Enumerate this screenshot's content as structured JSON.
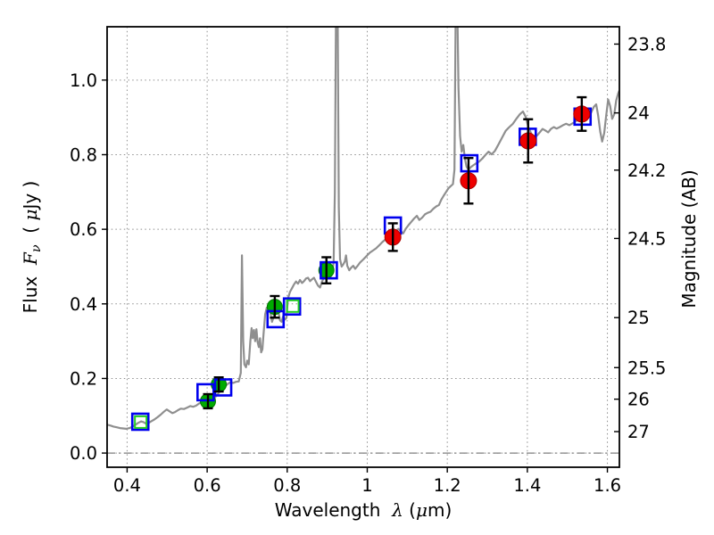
{
  "figure": {
    "background": "#ffffff",
    "xlabel_parts": [
      {
        "t": "Wavelength  "
      },
      {
        "t": "λ",
        "math": true
      },
      {
        "t": " ("
      },
      {
        "t": "μ",
        "math": true
      },
      {
        "t": "m)"
      }
    ],
    "ylabel_left_parts": [
      {
        "t": "Flux  "
      },
      {
        "t": "F",
        "math": true
      },
      {
        "t": "ν",
        "math": true,
        "sub": true
      },
      {
        "t": "  ( "
      },
      {
        "t": "μ",
        "math": true
      },
      {
        "t": "Jy )"
      }
    ],
    "ylabel_right_parts": [
      {
        "t": "Magnitude (AB)"
      }
    ]
  },
  "chart_data": {
    "type": "line",
    "title": "",
    "xlabel": "Wavelength lambda (micron)",
    "ylabel": "Flux F_nu (microJy)",
    "ylabel_right": "Magnitude (AB)",
    "xlim": [
      0.35,
      1.63
    ],
    "ylim": [
      -0.038,
      1.143
    ],
    "grid": {
      "on": true,
      "style": "dotted",
      "color": "#8f8f8f"
    },
    "zero_line": {
      "y": 0.0,
      "style": "dashdot",
      "color": "#808080"
    },
    "x_ticks": [
      0.4,
      0.6,
      0.8,
      1.0,
      1.2,
      1.4,
      1.6
    ],
    "x_tick_labels": [
      "0.4",
      "0.6",
      "0.8",
      "1",
      "1.2",
      "1.4",
      "1.6"
    ],
    "y_ticks": [
      0.0,
      0.2,
      0.4,
      0.6,
      0.8,
      1.0
    ],
    "y_tick_labels": [
      "0.0",
      "0.2",
      "0.4",
      "0.6",
      "0.8",
      "1.0"
    ],
    "right_axis_ticks": [
      {
        "label": "23.8",
        "flux": 1.0965
      },
      {
        "label": "24",
        "flux": 0.912
      },
      {
        "label": "24.2",
        "flux": 0.7586
      },
      {
        "label": "24.5",
        "flux": 0.5754
      },
      {
        "label": "25",
        "flux": 0.3631
      },
      {
        "label": "25.5",
        "flux": 0.2291
      },
      {
        "label": "26",
        "flux": 0.1445
      },
      {
        "label": "27",
        "flux": 0.0575
      }
    ],
    "series": [
      {
        "name": "model-spectrum",
        "type": "line",
        "color": "#8f8f8f",
        "linewidth": 2.2,
        "points": [
          [
            0.35,
            0.076
          ],
          [
            0.358,
            0.074
          ],
          [
            0.366,
            0.071
          ],
          [
            0.374,
            0.069
          ],
          [
            0.382,
            0.067
          ],
          [
            0.39,
            0.066
          ],
          [
            0.398,
            0.065
          ],
          [
            0.406,
            0.067
          ],
          [
            0.414,
            0.071
          ],
          [
            0.421,
            0.076
          ],
          [
            0.428,
            0.081
          ],
          [
            0.435,
            0.085
          ],
          [
            0.441,
            0.083
          ],
          [
            0.447,
            0.079
          ],
          [
            0.453,
            0.08
          ],
          [
            0.46,
            0.085
          ],
          [
            0.468,
            0.09
          ],
          [
            0.476,
            0.096
          ],
          [
            0.484,
            0.103
          ],
          [
            0.492,
            0.111
          ],
          [
            0.499,
            0.117
          ],
          [
            0.506,
            0.112
          ],
          [
            0.513,
            0.107
          ],
          [
            0.52,
            0.11
          ],
          [
            0.527,
            0.115
          ],
          [
            0.534,
            0.119
          ],
          [
            0.542,
            0.118
          ],
          [
            0.55,
            0.122
          ],
          [
            0.558,
            0.126
          ],
          [
            0.565,
            0.124
          ],
          [
            0.572,
            0.127
          ],
          [
            0.58,
            0.133
          ],
          [
            0.588,
            0.137
          ],
          [
            0.596,
            0.141
          ],
          [
            0.604,
            0.146
          ],
          [
            0.611,
            0.151
          ],
          [
            0.617,
            0.147
          ],
          [
            0.623,
            0.153
          ],
          [
            0.63,
            0.163
          ],
          [
            0.637,
            0.17
          ],
          [
            0.644,
            0.178
          ],
          [
            0.651,
            0.185
          ],
          [
            0.658,
            0.19
          ],
          [
            0.665,
            0.188
          ],
          [
            0.672,
            0.191
          ],
          [
            0.679,
            0.192
          ],
          [
            0.684,
            0.215
          ],
          [
            0.687,
            0.53
          ],
          [
            0.69,
            0.3
          ],
          [
            0.693,
            0.238
          ],
          [
            0.697,
            0.23
          ],
          [
            0.7,
            0.248
          ],
          [
            0.704,
            0.238
          ],
          [
            0.708,
            0.3
          ],
          [
            0.711,
            0.335
          ],
          [
            0.714,
            0.308
          ],
          [
            0.717,
            0.33
          ],
          [
            0.72,
            0.3
          ],
          [
            0.723,
            0.332
          ],
          [
            0.726,
            0.298
          ],
          [
            0.729,
            0.284
          ],
          [
            0.732,
            0.308
          ],
          [
            0.735,
            0.27
          ],
          [
            0.738,
            0.278
          ],
          [
            0.741,
            0.32
          ],
          [
            0.745,
            0.372
          ],
          [
            0.749,
            0.39
          ],
          [
            0.754,
            0.384
          ],
          [
            0.758,
            0.376
          ],
          [
            0.762,
            0.352
          ],
          [
            0.766,
            0.365
          ],
          [
            0.77,
            0.394
          ],
          [
            0.774,
            0.39
          ],
          [
            0.778,
            0.379
          ],
          [
            0.782,
            0.356
          ],
          [
            0.786,
            0.352
          ],
          [
            0.79,
            0.367
          ],
          [
            0.794,
            0.358
          ],
          [
            0.798,
            0.362
          ],
          [
            0.802,
            0.415
          ],
          [
            0.807,
            0.432
          ],
          [
            0.812,
            0.442
          ],
          [
            0.817,
            0.452
          ],
          [
            0.822,
            0.46
          ],
          [
            0.827,
            0.454
          ],
          [
            0.832,
            0.464
          ],
          [
            0.837,
            0.456
          ],
          [
            0.842,
            0.461
          ],
          [
            0.847,
            0.468
          ],
          [
            0.852,
            0.47
          ],
          [
            0.857,
            0.461
          ],
          [
            0.862,
            0.466
          ],
          [
            0.867,
            0.47
          ],
          [
            0.872,
            0.459
          ],
          [
            0.877,
            0.449
          ],
          [
            0.882,
            0.444
          ],
          [
            0.887,
            0.46
          ],
          [
            0.892,
            0.471
          ],
          [
            0.897,
            0.476
          ],
          [
            0.902,
            0.479
          ],
          [
            0.907,
            0.47
          ],
          [
            0.912,
            0.481
          ],
          [
            0.916,
            0.51
          ],
          [
            0.919,
            0.7
          ],
          [
            0.922,
            1.2
          ],
          [
            0.926,
            1.2
          ],
          [
            0.929,
            0.66
          ],
          [
            0.932,
            0.52
          ],
          [
            0.936,
            0.5
          ],
          [
            0.94,
            0.506
          ],
          [
            0.944,
            0.514
          ],
          [
            0.947,
            0.53
          ],
          [
            0.95,
            0.502
          ],
          [
            0.955,
            0.49
          ],
          [
            0.96,
            0.497
          ],
          [
            0.965,
            0.502
          ],
          [
            0.97,
            0.494
          ],
          [
            0.976,
            0.502
          ],
          [
            0.982,
            0.511
          ],
          [
            0.99,
            0.519
          ],
          [
            0.998,
            0.528
          ],
          [
            1.006,
            0.537
          ],
          [
            1.014,
            0.543
          ],
          [
            1.022,
            0.549
          ],
          [
            1.03,
            0.557
          ],
          [
            1.038,
            0.566
          ],
          [
            1.046,
            0.573
          ],
          [
            1.054,
            0.582
          ],
          [
            1.062,
            0.589
          ],
          [
            1.07,
            0.595
          ],
          [
            1.078,
            0.601
          ],
          [
            1.084,
            0.594
          ],
          [
            1.09,
            0.589
          ],
          [
            1.096,
            0.601
          ],
          [
            1.103,
            0.611
          ],
          [
            1.11,
            0.62
          ],
          [
            1.117,
            0.629
          ],
          [
            1.124,
            0.636
          ],
          [
            1.13,
            0.625
          ],
          [
            1.137,
            0.631
          ],
          [
            1.144,
            0.64
          ],
          [
            1.151,
            0.644
          ],
          [
            1.158,
            0.647
          ],
          [
            1.165,
            0.655
          ],
          [
            1.172,
            0.661
          ],
          [
            1.179,
            0.665
          ],
          [
            1.185,
            0.679
          ],
          [
            1.191,
            0.69
          ],
          [
            1.197,
            0.7
          ],
          [
            1.203,
            0.71
          ],
          [
            1.209,
            0.716
          ],
          [
            1.214,
            0.721
          ],
          [
            1.218,
            0.76
          ],
          [
            1.221,
            1.2
          ],
          [
            1.225,
            1.2
          ],
          [
            1.228,
            0.98
          ],
          [
            1.232,
            0.85
          ],
          [
            1.236,
            0.808
          ],
          [
            1.24,
            0.826
          ],
          [
            1.244,
            0.79
          ],
          [
            1.248,
            0.768
          ],
          [
            1.253,
            0.76
          ],
          [
            1.258,
            0.766
          ],
          [
            1.264,
            0.771
          ],
          [
            1.271,
            0.776
          ],
          [
            1.279,
            0.781
          ],
          [
            1.287,
            0.789
          ],
          [
            1.295,
            0.799
          ],
          [
            1.303,
            0.808
          ],
          [
            1.311,
            0.801
          ],
          [
            1.319,
            0.81
          ],
          [
            1.328,
            0.828
          ],
          [
            1.337,
            0.846
          ],
          [
            1.346,
            0.864
          ],
          [
            1.355,
            0.874
          ],
          [
            1.364,
            0.883
          ],
          [
            1.373,
            0.897
          ],
          [
            1.381,
            0.908
          ],
          [
            1.389,
            0.916
          ],
          [
            1.396,
            0.901
          ],
          [
            1.403,
            0.872
          ],
          [
            1.41,
            0.856
          ],
          [
            1.417,
            0.846
          ],
          [
            1.424,
            0.851
          ],
          [
            1.431,
            0.86
          ],
          [
            1.438,
            0.869
          ],
          [
            1.445,
            0.865
          ],
          [
            1.452,
            0.86
          ],
          [
            1.459,
            0.869
          ],
          [
            1.466,
            0.874
          ],
          [
            1.473,
            0.87
          ],
          [
            1.481,
            0.874
          ],
          [
            1.489,
            0.879
          ],
          [
            1.497,
            0.883
          ],
          [
            1.505,
            0.879
          ],
          [
            1.513,
            0.884
          ],
          [
            1.521,
            0.889
          ],
          [
            1.529,
            0.896
          ],
          [
            1.537,
            0.902
          ],
          [
            1.545,
            0.908
          ],
          [
            1.552,
            0.899
          ],
          [
            1.559,
            0.912
          ],
          [
            1.566,
            0.928
          ],
          [
            1.572,
            0.935
          ],
          [
            1.577,
            0.905
          ],
          [
            1.582,
            0.862
          ],
          [
            1.587,
            0.835
          ],
          [
            1.592,
            0.858
          ],
          [
            1.597,
            0.905
          ],
          [
            1.602,
            0.948
          ],
          [
            1.607,
            0.93
          ],
          [
            1.612,
            0.896
          ],
          [
            1.617,
            0.908
          ],
          [
            1.622,
            0.945
          ],
          [
            1.627,
            0.965
          ],
          [
            1.63,
            0.972
          ]
        ]
      },
      {
        "name": "green-circles-photometry",
        "type": "scatter",
        "marker": "filled-circle",
        "color": "#00ab00",
        "edge": "#007a00",
        "size": 17,
        "points": [
          [
            0.602,
            0.139
          ],
          [
            0.629,
            0.184
          ],
          [
            0.769,
            0.392
          ],
          [
            0.898,
            0.49
          ]
        ],
        "yerr": [
          0.019,
          0.019,
          0.029,
          0.035
        ]
      },
      {
        "name": "red-circles-photometry",
        "type": "scatter",
        "marker": "filled-circle",
        "color": "#ee0000",
        "edge": "#aa0000",
        "size": 18,
        "points": [
          [
            1.064,
            0.579
          ],
          [
            1.253,
            0.73
          ],
          [
            1.402,
            0.837
          ],
          [
            1.536,
            0.909
          ]
        ],
        "yerr": [
          0.037,
          0.061,
          0.058,
          0.045
        ]
      },
      {
        "name": "blue-open-squares-model",
        "type": "scatter",
        "marker": "open-square",
        "color": "#0000ee",
        "size": 18,
        "linewidth": 2.6,
        "points": [
          [
            0.433,
            0.084
          ],
          [
            0.596,
            0.163
          ],
          [
            0.64,
            0.176
          ],
          [
            0.771,
            0.359
          ],
          [
            0.812,
            0.393
          ],
          [
            0.904,
            0.49
          ],
          [
            1.064,
            0.61
          ],
          [
            1.255,
            0.777
          ],
          [
            1.401,
            0.848
          ],
          [
            1.538,
            0.902
          ]
        ]
      },
      {
        "name": "green-open-squares",
        "type": "scatter",
        "marker": "open-square",
        "color": "#22cc22",
        "size": 13,
        "linewidth": 2,
        "points": [
          [
            0.434,
            0.083
          ],
          [
            0.814,
            0.394
          ]
        ]
      }
    ],
    "errorbar_color": "#000000"
  }
}
